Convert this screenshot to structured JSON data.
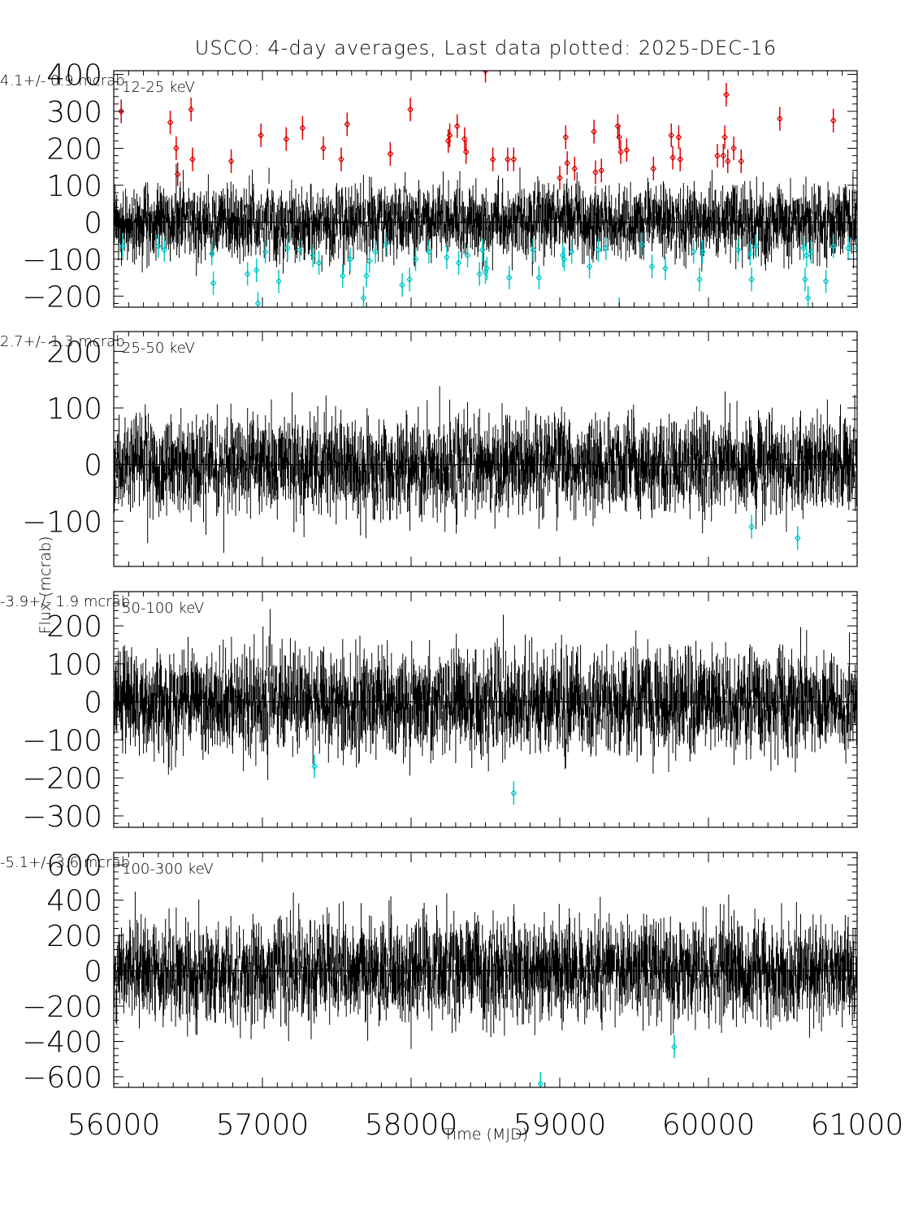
{
  "chart_data": {
    "type": "scatter",
    "title": "USCO:  4-day averages,  Last data plotted: 2025-DEC-16",
    "xlabel": "Time (MJD)",
    "ylabel": "Flux (mcrab)",
    "xlim": [
      56000,
      61000
    ],
    "xticks": [
      56000,
      57000,
      58000,
      59000,
      60000,
      61000
    ],
    "xtick_labels": [
      "56000",
      "57000",
      "58000",
      "59000",
      "60000",
      "61000"
    ],
    "colors": {
      "data": "#000000",
      "high_outlier": "#e00000",
      "low_outlier": "#00c8c8"
    },
    "panels": [
      {
        "band": "12-25 keV",
        "mean_label": "4.1+/-   0.9 mcrab",
        "ylim": [
          -230,
          410
        ],
        "yticks": [
          -200,
          -100,
          0,
          100,
          200,
          300,
          400
        ],
        "ytick_labels": [
          "−200",
          "−100",
          "0",
          "100",
          "200",
          "300",
          "400"
        ],
        "noise": 60,
        "high_outliers": [
          {
            "x": 56050,
            "y": 300
          },
          {
            "x": 56380,
            "y": 270
          },
          {
            "x": 56420,
            "y": 200
          },
          {
            "x": 56430,
            "y": 130
          },
          {
            "x": 56520,
            "y": 305
          },
          {
            "x": 56530,
            "y": 170
          },
          {
            "x": 56790,
            "y": 165
          },
          {
            "x": 56990,
            "y": 235
          },
          {
            "x": 57160,
            "y": 225
          },
          {
            "x": 57270,
            "y": 255
          },
          {
            "x": 57410,
            "y": 200
          },
          {
            "x": 57530,
            "y": 170
          },
          {
            "x": 57570,
            "y": 265
          },
          {
            "x": 57860,
            "y": 185
          },
          {
            "x": 57995,
            "y": 305
          },
          {
            "x": 58250,
            "y": 220
          },
          {
            "x": 58260,
            "y": 235
          },
          {
            "x": 58310,
            "y": 260
          },
          {
            "x": 58360,
            "y": 225
          },
          {
            "x": 58370,
            "y": 190
          },
          {
            "x": 58500,
            "y": 410
          },
          {
            "x": 58550,
            "y": 170
          },
          {
            "x": 58650,
            "y": 170
          },
          {
            "x": 58690,
            "y": 170
          },
          {
            "x": 59000,
            "y": 120
          },
          {
            "x": 59040,
            "y": 230
          },
          {
            "x": 59050,
            "y": 160
          },
          {
            "x": 59100,
            "y": 145
          },
          {
            "x": 59230,
            "y": 245
          },
          {
            "x": 59240,
            "y": 135
          },
          {
            "x": 59280,
            "y": 140
          },
          {
            "x": 59390,
            "y": 260
          },
          {
            "x": 59400,
            "y": 230
          },
          {
            "x": 59410,
            "y": 190
          },
          {
            "x": 59450,
            "y": 195
          },
          {
            "x": 59630,
            "y": 145
          },
          {
            "x": 59750,
            "y": 235
          },
          {
            "x": 59760,
            "y": 175
          },
          {
            "x": 59800,
            "y": 230
          },
          {
            "x": 59810,
            "y": 170
          },
          {
            "x": 60060,
            "y": 180
          },
          {
            "x": 60100,
            "y": 180
          },
          {
            "x": 60110,
            "y": 230
          },
          {
            "x": 60120,
            "y": 345
          },
          {
            "x": 60130,
            "y": 165
          },
          {
            "x": 60170,
            "y": 200
          },
          {
            "x": 60220,
            "y": 165
          },
          {
            "x": 60480,
            "y": 280
          },
          {
            "x": 60840,
            "y": 275
          }
        ],
        "low_outliers": [
          {
            "x": 56060,
            "y": -65
          },
          {
            "x": 56300,
            "y": -65
          },
          {
            "x": 56340,
            "y": -75
          },
          {
            "x": 56660,
            "y": -85
          },
          {
            "x": 56670,
            "y": -165
          },
          {
            "x": 56900,
            "y": -140
          },
          {
            "x": 56960,
            "y": -130
          },
          {
            "x": 56970,
            "y": -220
          },
          {
            "x": 57020,
            "y": -80
          },
          {
            "x": 57110,
            "y": -160
          },
          {
            "x": 57170,
            "y": -70
          },
          {
            "x": 57250,
            "y": -75
          },
          {
            "x": 57340,
            "y": -90
          },
          {
            "x": 57380,
            "y": -110
          },
          {
            "x": 57540,
            "y": -145
          },
          {
            "x": 57590,
            "y": -100
          },
          {
            "x": 57680,
            "y": -205
          },
          {
            "x": 57700,
            "y": -145
          },
          {
            "x": 57720,
            "y": -105
          },
          {
            "x": 57760,
            "y": -80
          },
          {
            "x": 57830,
            "y": -60
          },
          {
            "x": 57940,
            "y": -170
          },
          {
            "x": 57990,
            "y": -155
          },
          {
            "x": 58030,
            "y": -100
          },
          {
            "x": 58120,
            "y": -80
          },
          {
            "x": 58240,
            "y": -95
          },
          {
            "x": 58320,
            "y": -110
          },
          {
            "x": 58380,
            "y": -90
          },
          {
            "x": 58460,
            "y": -140
          },
          {
            "x": 58480,
            "y": -75
          },
          {
            "x": 58500,
            "y": -135
          },
          {
            "x": 58510,
            "y": -125
          },
          {
            "x": 58660,
            "y": -150
          },
          {
            "x": 58820,
            "y": -75
          },
          {
            "x": 58860,
            "y": -150
          },
          {
            "x": 59020,
            "y": -90
          },
          {
            "x": 59030,
            "y": -100
          },
          {
            "x": 59080,
            "y": -80
          },
          {
            "x": 59200,
            "y": -120
          },
          {
            "x": 59260,
            "y": -75
          },
          {
            "x": 59310,
            "y": -70
          },
          {
            "x": 59400,
            "y": -235
          },
          {
            "x": 59550,
            "y": -60
          },
          {
            "x": 59620,
            "y": -120
          },
          {
            "x": 59710,
            "y": -125
          },
          {
            "x": 59900,
            "y": -80
          },
          {
            "x": 59940,
            "y": -155
          },
          {
            "x": 59960,
            "y": -80
          },
          {
            "x": 60200,
            "y": -75
          },
          {
            "x": 60280,
            "y": -85
          },
          {
            "x": 60290,
            "y": -155
          },
          {
            "x": 60320,
            "y": -65
          },
          {
            "x": 60640,
            "y": -70
          },
          {
            "x": 60650,
            "y": -155
          },
          {
            "x": 60660,
            "y": -90
          },
          {
            "x": 60670,
            "y": -205
          },
          {
            "x": 60690,
            "y": -80
          },
          {
            "x": 60790,
            "y": -160
          },
          {
            "x": 60840,
            "y": -65
          },
          {
            "x": 60940,
            "y": -70
          },
          {
            "x": 61000,
            "y": -70
          }
        ]
      },
      {
        "band": "25-50 keV",
        "mean_label": "2.7+/-   1.3 mcrab",
        "ylim": [
          -180,
          235
        ],
        "yticks": [
          -100,
          0,
          100,
          200
        ],
        "ytick_labels": [
          "−100",
          "0",
          "100",
          "200"
        ],
        "noise": 50,
        "high_outliers": [],
        "low_outliers": [
          {
            "x": 60290,
            "y": -110
          },
          {
            "x": 60600,
            "y": -130
          }
        ]
      },
      {
        "band": "50-100 keV",
        "mean_label": "-3.9+/-   1.9 mcrab",
        "ylim": [
          -330,
          290
        ],
        "yticks": [
          -300,
          -200,
          -100,
          0,
          100,
          200
        ],
        "ytick_labels": [
          "−300",
          "−200",
          "−100",
          "0",
          "100",
          "200"
        ],
        "noise": 80,
        "high_outliers": [],
        "low_outliers": [
          {
            "x": 57350,
            "y": -170
          },
          {
            "x": 58690,
            "y": -240
          }
        ]
      },
      {
        "band": "100-300 keV",
        "mean_label": "-5.1+/-   3.6 mcrab",
        "ylim": [
          -660,
          670
        ],
        "yticks": [
          -600,
          -400,
          -200,
          0,
          200,
          400,
          600
        ],
        "ytick_labels": [
          "−600",
          "−400",
          "−200",
          "0",
          "200",
          "400",
          "600"
        ],
        "noise": 170,
        "high_outliers": [],
        "low_outliers": [
          {
            "x": 58870,
            "y": -640
          },
          {
            "x": 59770,
            "y": -430
          }
        ]
      }
    ]
  }
}
